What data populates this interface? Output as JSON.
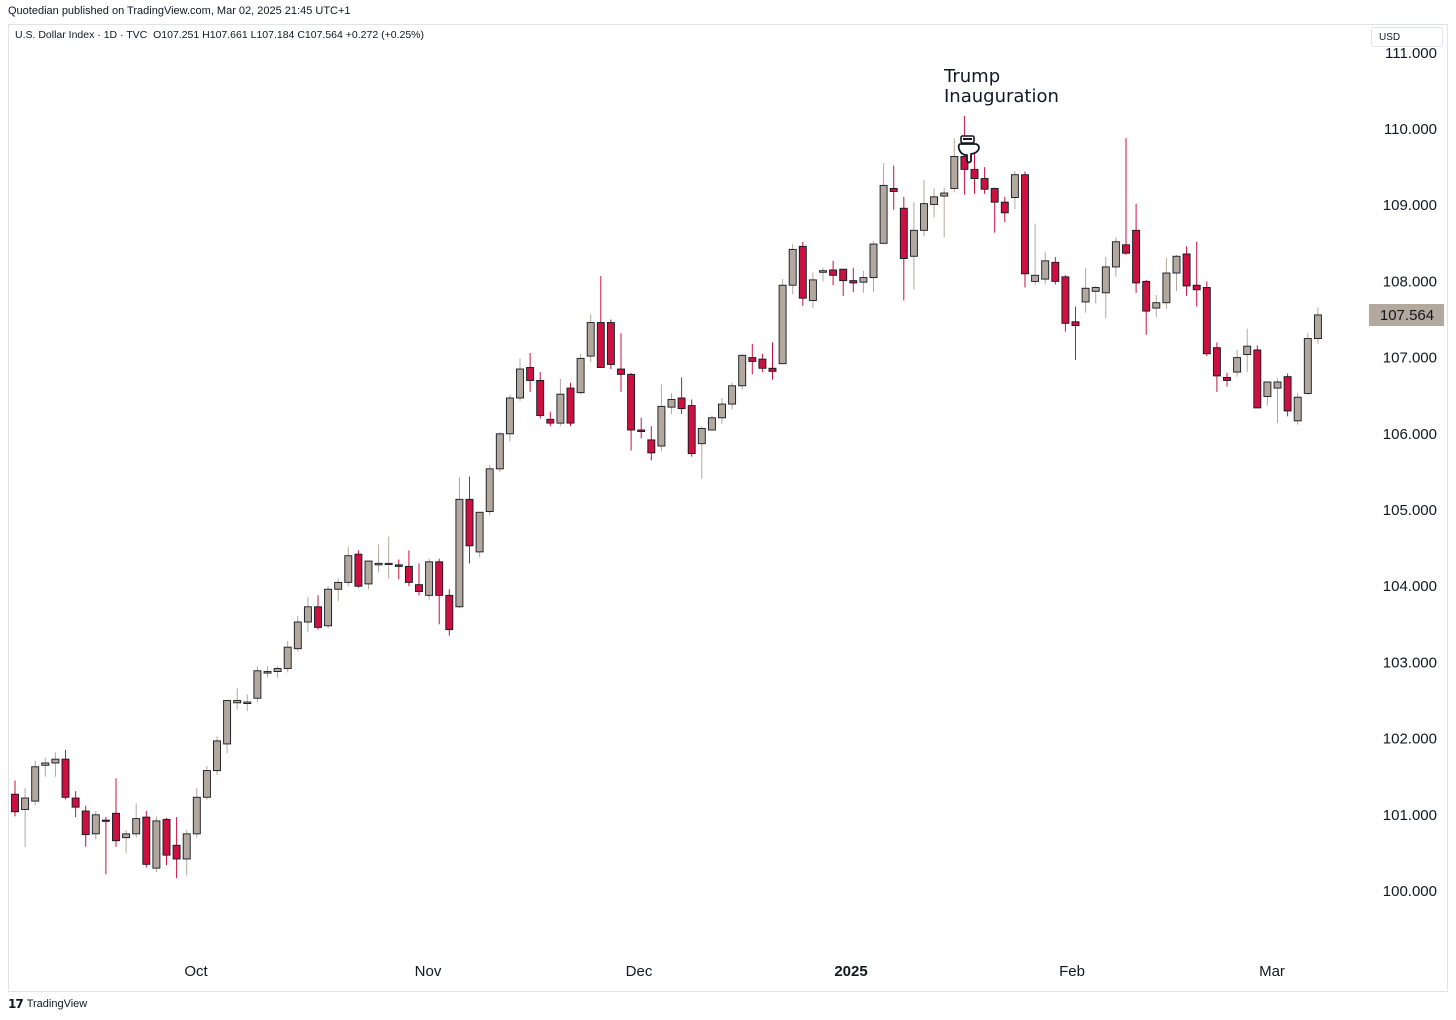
{
  "header": {
    "publisher": "Quotedian published on TradingView.com, Mar 02, 2025 21:45 UTC+1",
    "symbol": "U.S. Dollar Index · 1D · TVC",
    "ohlc": "O107.251  H107.661  L107.184  C107.564  +0.272 (+0.25%)",
    "currency": "USD"
  },
  "footer": {
    "brand": "TradingView",
    "logo_icon": "tradingview-logo-icon"
  },
  "colors": {
    "up": "#b2a89d",
    "down": "#cc1040",
    "axis_text": "#131722",
    "last_price_bg": "#b2a89d"
  },
  "chart_data": {
    "type": "candlestick",
    "title": "",
    "xlabel": "",
    "ylabel": "",
    "ylim": [
      99.0,
      111.5
    ],
    "y_ticks": [
      "100.000",
      "101.000",
      "102.000",
      "103.000",
      "104.000",
      "105.000",
      "106.000",
      "107.000",
      "108.000",
      "109.000",
      "110.000",
      "111.000"
    ],
    "x_ticks": [
      "Oct",
      "Nov",
      "Dec",
      "2025",
      "Feb",
      "Mar"
    ],
    "last_price": "107.564",
    "annotation": {
      "text": [
        "Trump",
        "Inauguration"
      ],
      "icon": "pointing-hand-icon"
    },
    "candles": [
      {
        "o": 101.27,
        "h": 101.45,
        "l": 100.98,
        "c": 101.04
      },
      {
        "o": 101.07,
        "h": 101.35,
        "l": 100.58,
        "c": 101.22
      },
      {
        "o": 101.18,
        "h": 101.71,
        "l": 101.12,
        "c": 101.63
      },
      {
        "o": 101.65,
        "h": 101.75,
        "l": 101.5,
        "c": 101.68
      },
      {
        "o": 101.68,
        "h": 101.82,
        "l": 101.5,
        "c": 101.73
      },
      {
        "o": 101.73,
        "h": 101.85,
        "l": 101.2,
        "c": 101.23
      },
      {
        "o": 101.22,
        "h": 101.31,
        "l": 100.97,
        "c": 101.1
      },
      {
        "o": 101.05,
        "h": 101.12,
        "l": 100.58,
        "c": 100.74
      },
      {
        "o": 100.75,
        "h": 101.05,
        "l": 100.68,
        "c": 101.0
      },
      {
        "o": 100.93,
        "h": 100.97,
        "l": 100.22,
        "c": 100.92
      },
      {
        "o": 101.02,
        "h": 101.48,
        "l": 100.58,
        "c": 100.66
      },
      {
        "o": 100.7,
        "h": 100.8,
        "l": 100.5,
        "c": 100.75
      },
      {
        "o": 100.75,
        "h": 101.15,
        "l": 100.7,
        "c": 100.95
      },
      {
        "o": 100.97,
        "h": 101.05,
        "l": 100.31,
        "c": 100.35
      },
      {
        "o": 100.3,
        "h": 100.98,
        "l": 100.25,
        "c": 100.92
      },
      {
        "o": 100.94,
        "h": 100.96,
        "l": 100.34,
        "c": 100.47
      },
      {
        "o": 100.6,
        "h": 100.97,
        "l": 100.17,
        "c": 100.42
      },
      {
        "o": 100.42,
        "h": 100.8,
        "l": 100.2,
        "c": 100.75
      },
      {
        "o": 100.75,
        "h": 101.35,
        "l": 100.7,
        "c": 101.23
      },
      {
        "o": 101.23,
        "h": 101.64,
        "l": 101.2,
        "c": 101.58
      },
      {
        "o": 101.58,
        "h": 102.03,
        "l": 101.52,
        "c": 101.97
      },
      {
        "o": 101.93,
        "h": 102.48,
        "l": 101.81,
        "c": 102.5
      },
      {
        "o": 102.47,
        "h": 102.66,
        "l": 102.38,
        "c": 102.5
      },
      {
        "o": 102.46,
        "h": 102.58,
        "l": 102.36,
        "c": 102.48
      },
      {
        "o": 102.53,
        "h": 102.95,
        "l": 102.48,
        "c": 102.89
      },
      {
        "o": 102.86,
        "h": 102.95,
        "l": 102.8,
        "c": 102.88
      },
      {
        "o": 102.88,
        "h": 102.95,
        "l": 102.8,
        "c": 102.92
      },
      {
        "o": 102.92,
        "h": 103.28,
        "l": 102.87,
        "c": 103.2
      },
      {
        "o": 103.18,
        "h": 103.61,
        "l": 103.14,
        "c": 103.53
      },
      {
        "o": 103.53,
        "h": 103.86,
        "l": 103.4,
        "c": 103.73
      },
      {
        "o": 103.73,
        "h": 103.88,
        "l": 103.43,
        "c": 103.46
      },
      {
        "o": 103.48,
        "h": 104.0,
        "l": 103.45,
        "c": 103.96
      },
      {
        "o": 103.96,
        "h": 104.1,
        "l": 103.8,
        "c": 104.05
      },
      {
        "o": 104.05,
        "h": 104.52,
        "l": 104.0,
        "c": 104.4
      },
      {
        "o": 104.42,
        "h": 104.47,
        "l": 103.98,
        "c": 104.0
      },
      {
        "o": 104.03,
        "h": 104.3,
        "l": 103.96,
        "c": 104.33
      },
      {
        "o": 104.28,
        "h": 104.55,
        "l": 104.18,
        "c": 104.3
      },
      {
        "o": 104.3,
        "h": 104.65,
        "l": 104.1,
        "c": 104.3
      },
      {
        "o": 104.28,
        "h": 104.35,
        "l": 104.09,
        "c": 104.26
      },
      {
        "o": 104.26,
        "h": 104.47,
        "l": 104.0,
        "c": 104.05
      },
      {
        "o": 104.02,
        "h": 104.3,
        "l": 103.88,
        "c": 103.93
      },
      {
        "o": 103.88,
        "h": 104.36,
        "l": 103.82,
        "c": 104.32
      },
      {
        "o": 104.32,
        "h": 104.36,
        "l": 103.5,
        "c": 103.88
      },
      {
        "o": 103.88,
        "h": 103.96,
        "l": 103.35,
        "c": 103.43
      },
      {
        "o": 103.73,
        "h": 105.43,
        "l": 103.71,
        "c": 105.14
      },
      {
        "o": 105.14,
        "h": 105.44,
        "l": 104.3,
        "c": 104.53
      },
      {
        "o": 104.45,
        "h": 104.95,
        "l": 104.38,
        "c": 104.97
      },
      {
        "o": 104.98,
        "h": 105.59,
        "l": 104.93,
        "c": 105.54
      },
      {
        "o": 105.54,
        "h": 106.02,
        "l": 105.5,
        "c": 106.0
      },
      {
        "o": 106.0,
        "h": 106.51,
        "l": 105.9,
        "c": 106.47
      },
      {
        "o": 106.47,
        "h": 106.99,
        "l": 106.43,
        "c": 106.85
      },
      {
        "o": 106.87,
        "h": 107.06,
        "l": 106.55,
        "c": 106.7
      },
      {
        "o": 106.7,
        "h": 106.81,
        "l": 106.2,
        "c": 106.24
      },
      {
        "o": 106.19,
        "h": 106.29,
        "l": 106.1,
        "c": 106.14
      },
      {
        "o": 106.14,
        "h": 106.72,
        "l": 106.1,
        "c": 106.52
      },
      {
        "o": 106.6,
        "h": 106.67,
        "l": 106.1,
        "c": 106.14
      },
      {
        "o": 106.54,
        "h": 107.05,
        "l": 106.52,
        "c": 106.99
      },
      {
        "o": 107.02,
        "h": 107.57,
        "l": 106.94,
        "c": 107.46
      },
      {
        "o": 107.46,
        "h": 108.07,
        "l": 106.95,
        "c": 106.87
      },
      {
        "o": 107.46,
        "h": 107.5,
        "l": 106.85,
        "c": 106.91
      },
      {
        "o": 106.85,
        "h": 107.32,
        "l": 106.55,
        "c": 106.78
      },
      {
        "o": 106.78,
        "h": 106.8,
        "l": 105.78,
        "c": 106.05
      },
      {
        "o": 106.05,
        "h": 106.21,
        "l": 105.94,
        "c": 106.03
      },
      {
        "o": 105.92,
        "h": 106.1,
        "l": 105.65,
        "c": 105.75
      },
      {
        "o": 105.84,
        "h": 106.65,
        "l": 105.77,
        "c": 106.36
      },
      {
        "o": 106.35,
        "h": 106.53,
        "l": 106.26,
        "c": 106.45
      },
      {
        "o": 106.47,
        "h": 106.74,
        "l": 106.26,
        "c": 106.33
      },
      {
        "o": 106.37,
        "h": 106.45,
        "l": 105.7,
        "c": 105.74
      },
      {
        "o": 105.87,
        "h": 106.1,
        "l": 105.41,
        "c": 106.07
      },
      {
        "o": 106.05,
        "h": 106.24,
        "l": 106.04,
        "c": 106.21
      },
      {
        "o": 106.21,
        "h": 106.47,
        "l": 106.13,
        "c": 106.39
      },
      {
        "o": 106.39,
        "h": 106.67,
        "l": 106.32,
        "c": 106.63
      },
      {
        "o": 106.63,
        "h": 107.05,
        "l": 106.58,
        "c": 107.03
      },
      {
        "o": 107.0,
        "h": 107.18,
        "l": 106.78,
        "c": 106.95
      },
      {
        "o": 106.98,
        "h": 107.05,
        "l": 106.81,
        "c": 106.86
      },
      {
        "o": 106.86,
        "h": 107.2,
        "l": 106.71,
        "c": 106.82
      },
      {
        "o": 106.92,
        "h": 108.03,
        "l": 106.92,
        "c": 107.95
      },
      {
        "o": 107.95,
        "h": 108.49,
        "l": 107.83,
        "c": 108.42
      },
      {
        "o": 108.46,
        "h": 108.52,
        "l": 107.68,
        "c": 107.78
      },
      {
        "o": 107.75,
        "h": 108.12,
        "l": 107.65,
        "c": 108.02
      },
      {
        "o": 108.12,
        "h": 108.18,
        "l": 108.0,
        "c": 108.14
      },
      {
        "o": 108.15,
        "h": 108.27,
        "l": 107.95,
        "c": 108.08
      },
      {
        "o": 108.16,
        "h": 108.16,
        "l": 107.81,
        "c": 108.01
      },
      {
        "o": 108.01,
        "h": 108.18,
        "l": 107.86,
        "c": 107.98
      },
      {
        "o": 107.99,
        "h": 108.14,
        "l": 107.85,
        "c": 108.05
      },
      {
        "o": 108.05,
        "h": 108.52,
        "l": 107.86,
        "c": 108.49
      },
      {
        "o": 108.5,
        "h": 109.55,
        "l": 108.49,
        "c": 109.26
      },
      {
        "o": 109.22,
        "h": 109.52,
        "l": 108.94,
        "c": 109.18
      },
      {
        "o": 108.96,
        "h": 109.11,
        "l": 107.75,
        "c": 108.3
      },
      {
        "o": 108.33,
        "h": 109.04,
        "l": 107.89,
        "c": 108.67
      },
      {
        "o": 108.67,
        "h": 109.33,
        "l": 108.59,
        "c": 109.02
      },
      {
        "o": 109.01,
        "h": 109.22,
        "l": 108.84,
        "c": 109.11
      },
      {
        "o": 109.12,
        "h": 109.23,
        "l": 108.58,
        "c": 109.16
      },
      {
        "o": 109.22,
        "h": 109.88,
        "l": 109.17,
        "c": 109.64
      },
      {
        "o": 109.64,
        "h": 110.17,
        "l": 109.14,
        "c": 109.47
      },
      {
        "o": 109.47,
        "h": 109.72,
        "l": 109.15,
        "c": 109.35
      },
      {
        "o": 109.35,
        "h": 109.5,
        "l": 109.15,
        "c": 109.21
      },
      {
        "o": 109.22,
        "h": 109.23,
        "l": 108.64,
        "c": 109.04
      },
      {
        "o": 109.04,
        "h": 109.11,
        "l": 108.78,
        "c": 108.9
      },
      {
        "o": 109.1,
        "h": 109.45,
        "l": 108.95,
        "c": 109.4
      },
      {
        "o": 109.4,
        "h": 109.44,
        "l": 107.92,
        "c": 108.1
      },
      {
        "o": 108.0,
        "h": 108.76,
        "l": 107.96,
        "c": 108.08
      },
      {
        "o": 108.03,
        "h": 108.39,
        "l": 107.96,
        "c": 108.27
      },
      {
        "o": 108.25,
        "h": 108.32,
        "l": 107.96,
        "c": 108.0
      },
      {
        "o": 108.06,
        "h": 108.08,
        "l": 107.34,
        "c": 107.45
      },
      {
        "o": 107.47,
        "h": 107.67,
        "l": 106.97,
        "c": 107.42
      },
      {
        "o": 107.73,
        "h": 108.17,
        "l": 107.59,
        "c": 107.91
      },
      {
        "o": 107.87,
        "h": 107.94,
        "l": 107.71,
        "c": 107.92
      },
      {
        "o": 107.85,
        "h": 108.32,
        "l": 107.52,
        "c": 108.19
      },
      {
        "o": 108.19,
        "h": 108.58,
        "l": 108.06,
        "c": 108.52
      },
      {
        "o": 108.48,
        "h": 109.88,
        "l": 108.35,
        "c": 108.37
      },
      {
        "o": 108.67,
        "h": 109.02,
        "l": 107.85,
        "c": 107.98
      },
      {
        "o": 108.0,
        "h": 108.02,
        "l": 107.3,
        "c": 107.61
      },
      {
        "o": 107.65,
        "h": 107.82,
        "l": 107.53,
        "c": 107.72
      },
      {
        "o": 107.72,
        "h": 108.31,
        "l": 107.64,
        "c": 108.11
      },
      {
        "o": 108.11,
        "h": 108.35,
        "l": 107.87,
        "c": 108.33
      },
      {
        "o": 108.36,
        "h": 108.46,
        "l": 107.81,
        "c": 107.94
      },
      {
        "o": 107.95,
        "h": 108.52,
        "l": 107.67,
        "c": 107.89
      },
      {
        "o": 107.92,
        "h": 108.0,
        "l": 107.02,
        "c": 107.05
      },
      {
        "o": 107.13,
        "h": 107.2,
        "l": 106.55,
        "c": 106.76
      },
      {
        "o": 106.74,
        "h": 106.8,
        "l": 106.62,
        "c": 106.7
      },
      {
        "o": 106.81,
        "h": 107.1,
        "l": 106.75,
        "c": 107.0
      },
      {
        "o": 107.04,
        "h": 107.38,
        "l": 106.81,
        "c": 107.15
      },
      {
        "o": 107.1,
        "h": 107.16,
        "l": 106.37,
        "c": 106.34
      },
      {
        "o": 106.49,
        "h": 106.68,
        "l": 106.37,
        "c": 106.68
      },
      {
        "o": 106.6,
        "h": 106.73,
        "l": 106.14,
        "c": 106.68
      },
      {
        "o": 106.75,
        "h": 106.79,
        "l": 106.23,
        "c": 106.3
      },
      {
        "o": 106.17,
        "h": 106.54,
        "l": 106.12,
        "c": 106.48
      },
      {
        "o": 106.53,
        "h": 107.32,
        "l": 106.51,
        "c": 107.25
      },
      {
        "o": 107.25,
        "h": 107.66,
        "l": 107.18,
        "c": 107.56
      }
    ]
  }
}
